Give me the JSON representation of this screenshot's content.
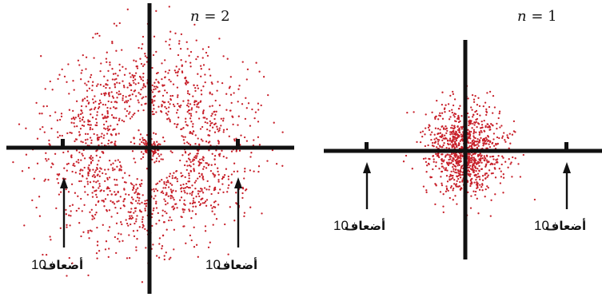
{
  "figure": {
    "point_color": "#c8202a",
    "axis_color": "#111111",
    "panels": [
      {
        "id": "n2",
        "label_var": "n",
        "label_rest": " = 2",
        "distribution": "ring",
        "arrow_labels": [
          {
            "number": "10",
            "word": "أضعاف"
          },
          {
            "number": "10",
            "word": "أضعاف"
          }
        ]
      },
      {
        "id": "n1",
        "label_var": "n",
        "label_rest": " = 1",
        "distribution": "blob",
        "arrow_labels": [
          {
            "number": "10",
            "word": "أضعاف"
          },
          {
            "number": "10",
            "word": "أضعاف"
          }
        ]
      }
    ]
  }
}
